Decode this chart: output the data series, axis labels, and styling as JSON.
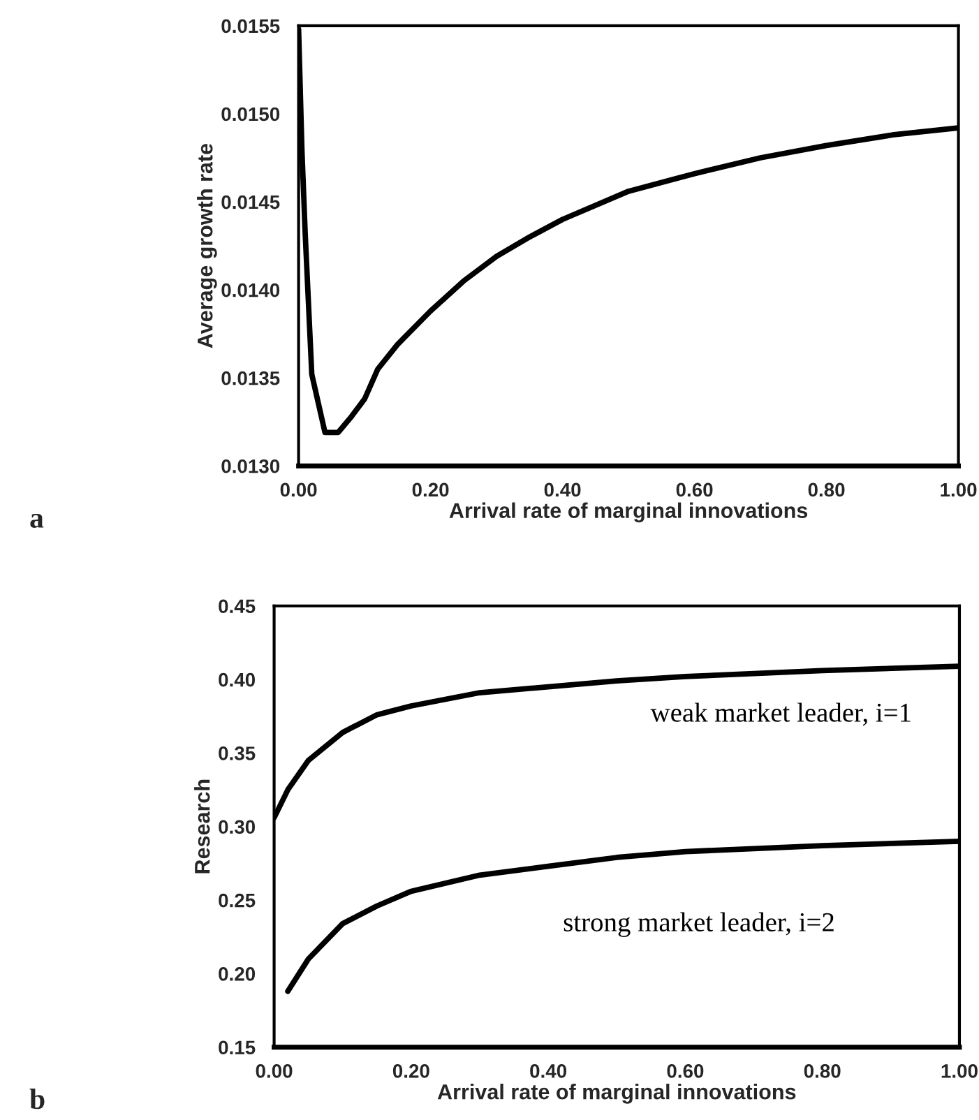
{
  "chart_data": [
    {
      "type": "line",
      "xlabel": "Arrival rate of marginal innovations",
      "ylabel": "Average growth rate",
      "x": [
        0,
        0.005,
        0.01,
        0.02,
        0.04,
        0.06,
        0.08,
        0.1,
        0.12,
        0.15,
        0.2,
        0.25,
        0.3,
        0.35,
        0.4,
        0.5,
        0.6,
        0.7,
        0.8,
        0.9,
        1.0
      ],
      "series": [
        {
          "color": "#000000",
          "values": [
            0.01548,
            0.0148,
            0.01432,
            0.01352,
            0.01319,
            0.01319,
            0.01328,
            0.01338,
            0.01355,
            0.01369,
            0.01388,
            0.01405,
            0.01419,
            0.0143,
            0.0144,
            0.01456,
            0.01466,
            0.01475,
            0.01482,
            0.01488,
            0.01492
          ]
        }
      ],
      "xlim": [
        0,
        1
      ],
      "ylim": [
        0.013,
        0.0155
      ],
      "xticks": [
        {
          "value": 0,
          "label": "0.00"
        },
        {
          "value": 0.2,
          "label": "0.20"
        },
        {
          "value": 0.4,
          "label": "0.40"
        },
        {
          "value": 0.6,
          "label": "0.60"
        },
        {
          "value": 0.8,
          "label": "0.80"
        },
        {
          "value": 1,
          "label": "1.00"
        }
      ],
      "yticks": [
        {
          "value": 0.013,
          "label": "0.0130"
        },
        {
          "value": 0.0135,
          "label": "0.0135"
        },
        {
          "value": 0.014,
          "label": "0.0140"
        },
        {
          "value": 0.0145,
          "label": "0.0145"
        },
        {
          "value": 0.015,
          "label": "0.0150"
        },
        {
          "value": 0.0155,
          "label": "0.0155"
        }
      ],
      "grid": false,
      "legend": false,
      "marker": "none",
      "line_style": "solid",
      "annotations": [
        "a"
      ]
    },
    {
      "type": "line",
      "xlabel": "Arrival rate of marginal innovations",
      "ylabel": "Research",
      "series": [
        {
          "name": "weak market leader, i=1",
          "color": "#000000",
          "x": [
            0,
            0.02,
            0.05,
            0.1,
            0.15,
            0.2,
            0.3,
            0.4,
            0.5,
            0.6,
            0.8,
            1.0
          ],
          "values": [
            0.306,
            0.325,
            0.345,
            0.364,
            0.376,
            0.382,
            0.391,
            0.395,
            0.399,
            0.402,
            0.406,
            0.409
          ]
        },
        {
          "name": "strong market leader, i=2",
          "color": "#000000",
          "x": [
            0.02,
            0.05,
            0.1,
            0.15,
            0.2,
            0.3,
            0.4,
            0.5,
            0.6,
            0.8,
            1.0
          ],
          "values": [
            0.188,
            0.21,
            0.234,
            0.246,
            0.256,
            0.267,
            0.273,
            0.279,
            0.283,
            0.287,
            0.29
          ]
        }
      ],
      "xlim": [
        0,
        1
      ],
      "ylim": [
        0.15,
        0.45
      ],
      "xticks": [
        {
          "value": 0,
          "label": "0.00"
        },
        {
          "value": 0.2,
          "label": "0.20"
        },
        {
          "value": 0.4,
          "label": "0.40"
        },
        {
          "value": 0.6,
          "label": "0.60"
        },
        {
          "value": 0.8,
          "label": "0.80"
        },
        {
          "value": 1,
          "label": "1.00"
        }
      ],
      "yticks": [
        {
          "value": 0.15,
          "label": "0.15"
        },
        {
          "value": 0.2,
          "label": "0.20"
        },
        {
          "value": 0.25,
          "label": "0.25"
        },
        {
          "value": 0.3,
          "label": "0.30"
        },
        {
          "value": 0.35,
          "label": "0.35"
        },
        {
          "value": 0.4,
          "label": "0.40"
        },
        {
          "value": 0.45,
          "label": "0.45"
        }
      ],
      "grid": false,
      "legend": false,
      "marker": "none",
      "line_style": "solid",
      "annotations": [
        "b"
      ]
    }
  ]
}
